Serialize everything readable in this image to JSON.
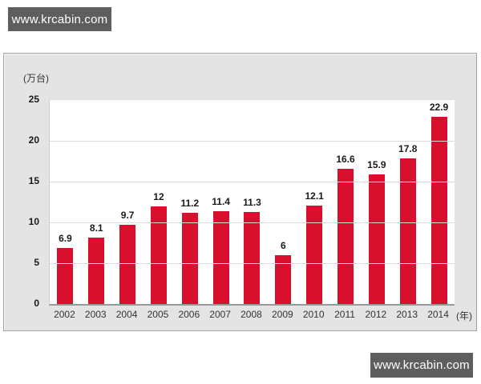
{
  "watermarks": {
    "top": "www.krcabin.com",
    "bottom": "www.krcabin.com"
  },
  "chart_data": {
    "type": "bar",
    "title": "",
    "categories": [
      "2002",
      "2003",
      "2004",
      "2005",
      "2006",
      "2007",
      "2008",
      "2009",
      "2010",
      "2011",
      "2012",
      "2013",
      "2014"
    ],
    "values": [
      6.9,
      8.1,
      9.7,
      12,
      11.2,
      11.4,
      11.3,
      6,
      12.1,
      16.6,
      15.9,
      17.8,
      22.9
    ],
    "xlabel": "(年)",
    "ylabel": "(万台)",
    "ylim": [
      0,
      25
    ],
    "yticks": [
      0,
      5,
      10,
      15,
      20,
      25
    ],
    "bar_color": "#d8102e",
    "grid": true,
    "legend": "none",
    "value_labels_shown": true
  }
}
